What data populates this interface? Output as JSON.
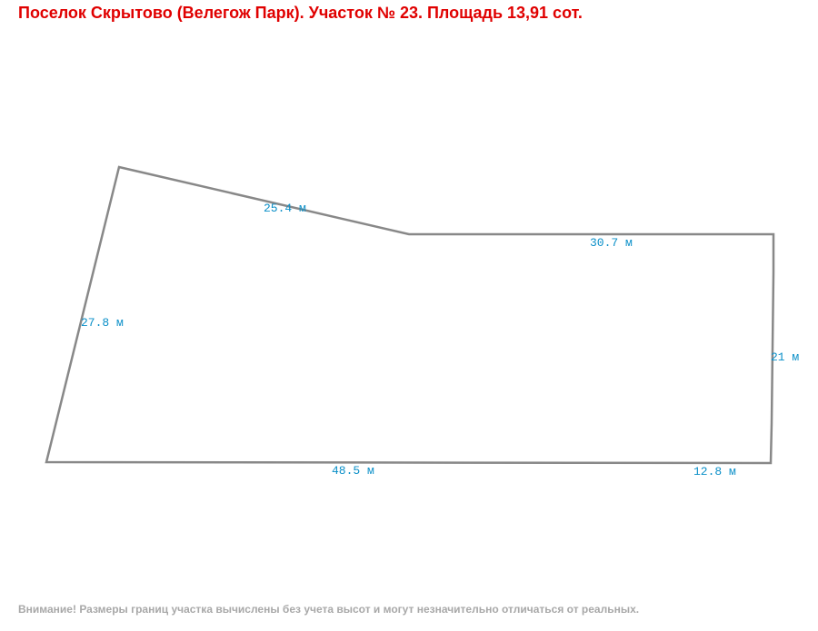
{
  "header": {
    "title": "Поселок Скрытово (Велегож Парк). Участок № 23. Площадь 13,91 сот."
  },
  "edges": [
    {
      "label": "25.4 м"
    },
    {
      "label": "30.7 м"
    },
    {
      "label": "21 м"
    },
    {
      "label": "12.8 м"
    },
    {
      "label": "48.5 м"
    },
    {
      "label": "27.8 м"
    }
  ],
  "footer": {
    "note": "Внимание! Размеры границ участка вычислены без учета высот и могут незначительно отличаться от реальных."
  }
}
